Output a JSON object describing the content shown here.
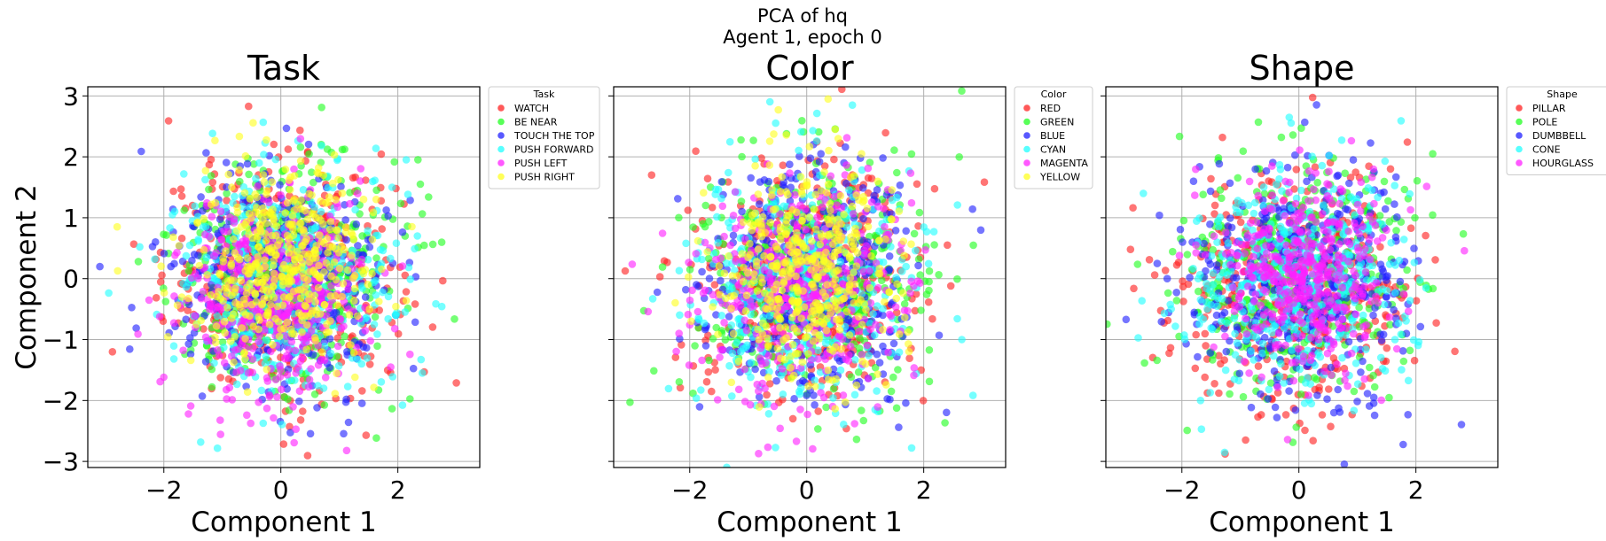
{
  "figure": {
    "suptitle_line1": "PCA of hq",
    "suptitle_line2": "Agent 1, epoch 0"
  },
  "chart_data": [
    {
      "type": "scatter",
      "title": "Task",
      "xlabel": "Component 1",
      "ylabel": "Component 2",
      "xlim": [
        -3.3,
        3.4
      ],
      "ylim": [
        -3.1,
        3.15
      ],
      "xticks": [
        -2,
        0,
        2
      ],
      "yticks": [
        -3,
        -2,
        -1,
        0,
        1,
        2,
        3
      ],
      "grid": true,
      "legend_title": "Task",
      "legend_position": "outside upper right",
      "series": [
        {
          "name": "WATCH",
          "color": "#ff2020",
          "center": [
            0.0,
            0.0
          ],
          "spread": [
            1.0,
            0.95
          ]
        },
        {
          "name": "BE NEAR",
          "color": "#20ff20",
          "center": [
            0.05,
            0.05
          ],
          "spread": [
            1.0,
            0.95
          ]
        },
        {
          "name": "TOUCH THE TOP",
          "color": "#2020ff",
          "center": [
            0.0,
            -0.05
          ],
          "spread": [
            1.0,
            0.95
          ]
        },
        {
          "name": "PUSH FORWARD",
          "color": "#20ffff",
          "center": [
            0.05,
            -0.05
          ],
          "spread": [
            1.0,
            0.95
          ]
        },
        {
          "name": "PUSH LEFT",
          "color": "#ff20ff",
          "center": [
            -0.1,
            -0.2
          ],
          "spread": [
            0.85,
            0.9
          ]
        },
        {
          "name": "PUSH RIGHT",
          "color": "#ffff20",
          "center": [
            0.0,
            0.2
          ],
          "spread": [
            0.75,
            0.8
          ]
        }
      ]
    },
    {
      "type": "scatter",
      "title": "Color",
      "xlabel": "Component 1",
      "ylabel": "",
      "xlim": [
        -3.3,
        3.4
      ],
      "ylim": [
        -3.1,
        3.15
      ],
      "xticks": [
        -2,
        0,
        2
      ],
      "yticks": [
        -3,
        -2,
        -1,
        0,
        1,
        2,
        3
      ],
      "grid": true,
      "legend_title": "Color",
      "legend_position": "outside upper right",
      "series": [
        {
          "name": "RED",
          "color": "#ff2020",
          "center": [
            0.0,
            0.0
          ],
          "spread": [
            1.0,
            0.95
          ]
        },
        {
          "name": "GREEN",
          "color": "#20ff20",
          "center": [
            0.0,
            0.0
          ],
          "spread": [
            1.0,
            0.95
          ]
        },
        {
          "name": "BLUE",
          "color": "#2020ff",
          "center": [
            0.1,
            0.0
          ],
          "spread": [
            0.95,
            0.95
          ]
        },
        {
          "name": "CYAN",
          "color": "#20ffff",
          "center": [
            -0.1,
            -0.1
          ],
          "spread": [
            0.95,
            0.95
          ]
        },
        {
          "name": "MAGENTA",
          "color": "#ff20ff",
          "center": [
            -0.1,
            -0.1
          ],
          "spread": [
            0.9,
            0.9
          ]
        },
        {
          "name": "YELLOW",
          "color": "#ffff20",
          "center": [
            0.0,
            0.15
          ],
          "spread": [
            0.8,
            0.85
          ]
        }
      ]
    },
    {
      "type": "scatter",
      "title": "Shape",
      "xlabel": "Component 1",
      "ylabel": "",
      "xlim": [
        -3.3,
        3.4
      ],
      "ylim": [
        -3.1,
        3.15
      ],
      "xticks": [
        -2,
        0,
        2
      ],
      "yticks": [
        -3,
        -2,
        -1,
        0,
        1,
        2,
        3
      ],
      "grid": true,
      "legend_title": "Shape",
      "legend_position": "outside upper right",
      "series": [
        {
          "name": "PILLAR",
          "color": "#ff2020",
          "center": [
            0.0,
            -0.2
          ],
          "spread": [
            1.05,
            1.0
          ]
        },
        {
          "name": "POLE",
          "color": "#20ff20",
          "center": [
            0.0,
            0.1
          ],
          "spread": [
            1.0,
            0.95
          ]
        },
        {
          "name": "DUMBBELL",
          "color": "#2020ff",
          "center": [
            0.0,
            0.0
          ],
          "spread": [
            1.0,
            0.95
          ]
        },
        {
          "name": "CONE",
          "color": "#20ffff",
          "center": [
            0.0,
            0.0
          ],
          "spread": [
            0.95,
            0.9
          ]
        },
        {
          "name": "HOURGLASS",
          "color": "#ff20ff",
          "center": [
            0.1,
            0.1
          ],
          "spread": [
            0.7,
            0.75
          ]
        }
      ]
    }
  ]
}
